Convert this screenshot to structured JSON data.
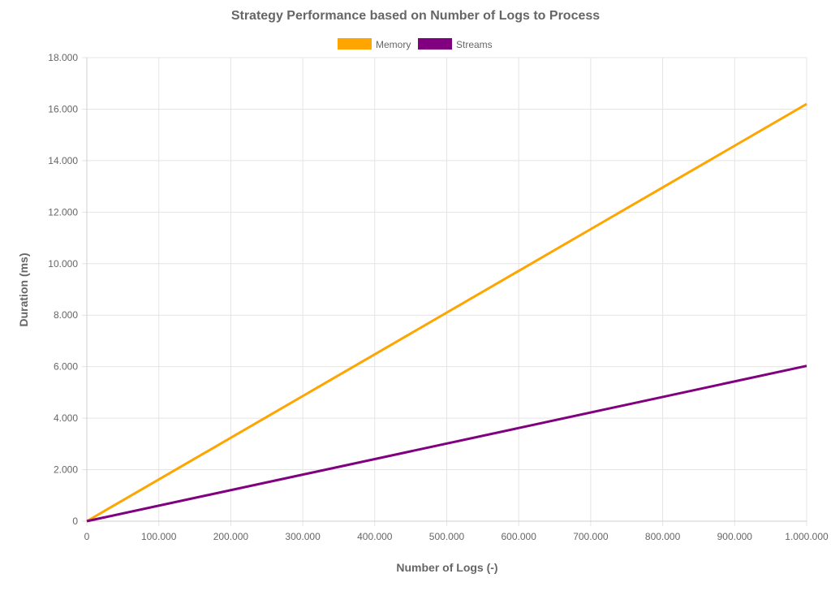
{
  "chart_data": {
    "type": "line",
    "title": "Strategy Performance based on Number of Logs to Process",
    "xlabel": "Number of Logs (-)",
    "ylabel": "Duration (ms)",
    "x": [
      0,
      1000000
    ],
    "xlim": [
      0,
      1000000
    ],
    "ylim": [
      0,
      18000
    ],
    "x_tick_labels": [
      "0",
      "100.000",
      "200.000",
      "300.000",
      "400.000",
      "500.000",
      "600.000",
      "700.000",
      "800.000",
      "900.000",
      "1.000.000"
    ],
    "y_tick_labels": [
      "0",
      "2.000",
      "4.000",
      "6.000",
      "8.000",
      "10.000",
      "12.000",
      "14.000",
      "16.000",
      "18.000"
    ],
    "grid": true,
    "legend_position": "top",
    "series": [
      {
        "name": "Memory",
        "color": "#FFA500",
        "values": [
          0,
          16200
        ]
      },
      {
        "name": "Streams",
        "color": "#800080",
        "values": [
          0,
          6030
        ]
      }
    ]
  }
}
